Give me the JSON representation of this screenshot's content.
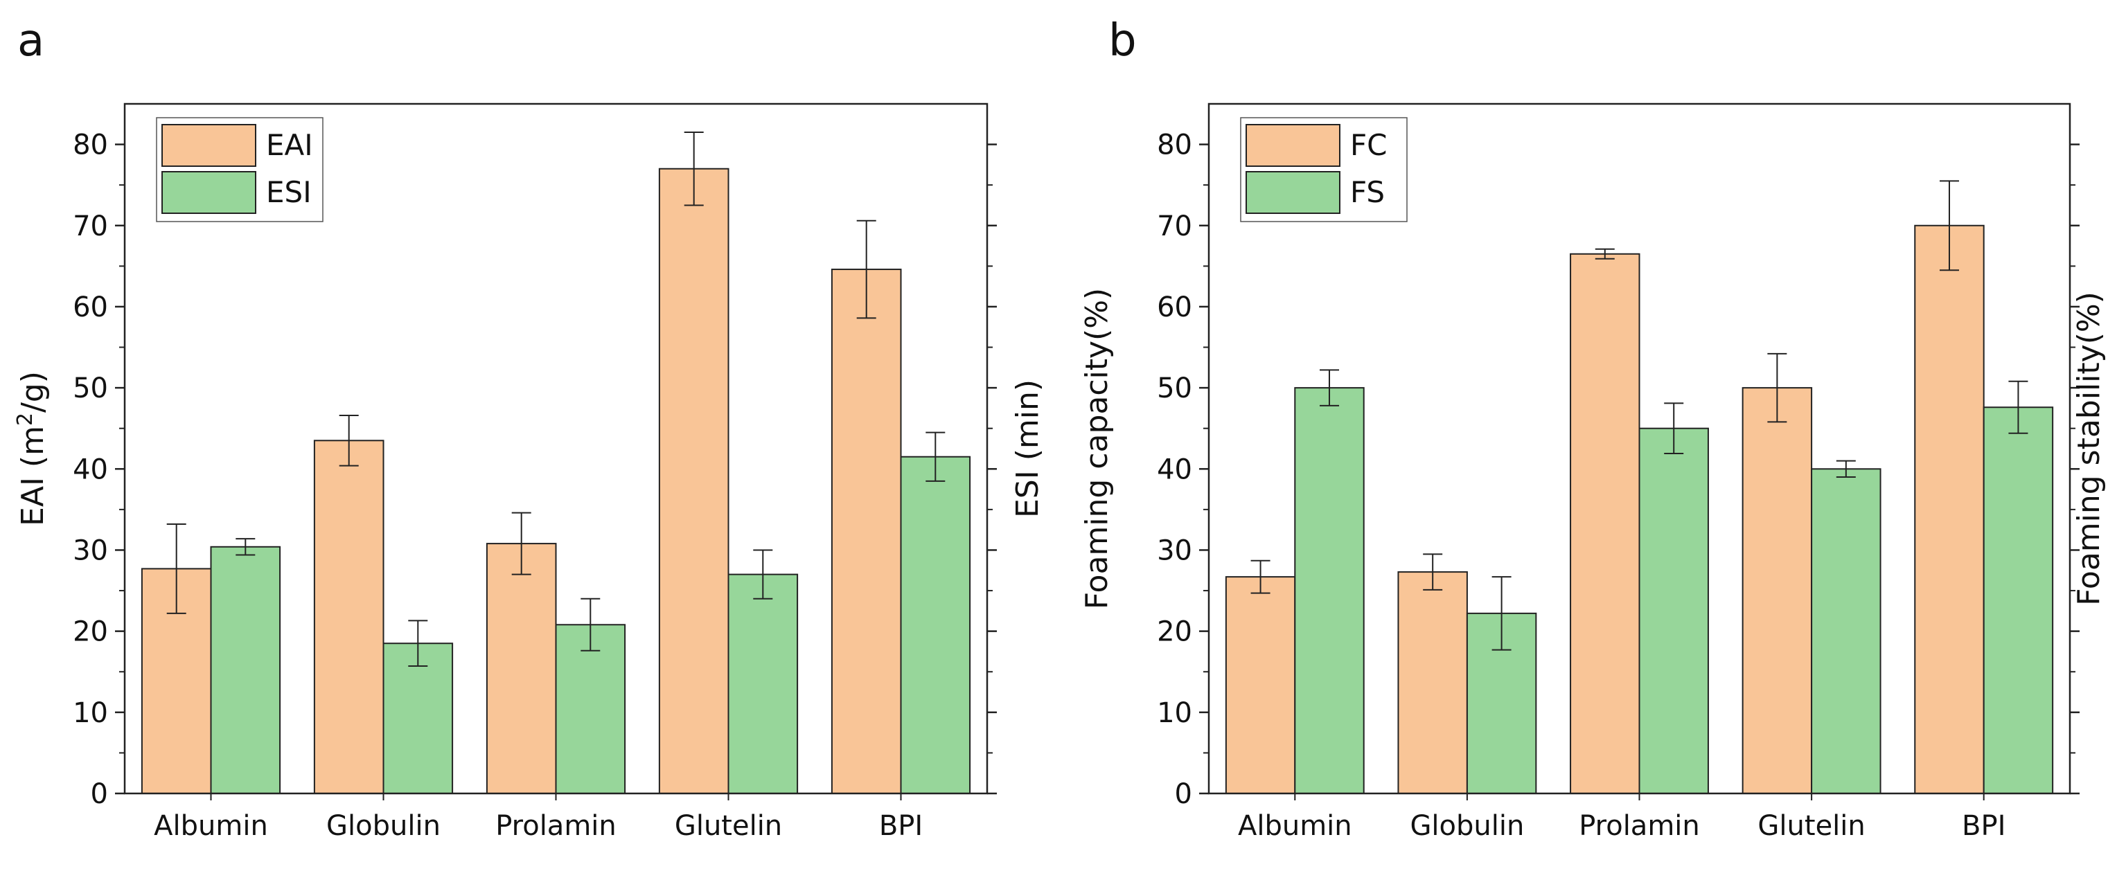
{
  "colors": {
    "orange": "#f9c597",
    "green": "#97d69a",
    "stroke": "#222222"
  },
  "chart_data": [
    {
      "panel_label": "a",
      "type": "bar",
      "categories": [
        "Albumin",
        "Globulin",
        "Prolamin",
        "Glutelin",
        "BPI"
      ],
      "ylim": [
        0,
        85
      ],
      "yticks": [
        "0",
        "10",
        "20",
        "30",
        "40",
        "50",
        "60",
        "70",
        "80"
      ],
      "ylabel_left": "EAI (m",
      "ylabel_left_sup": "2",
      "ylabel_left_end": "/g)",
      "ylabel_right": "ESI (min)",
      "legend_position": "top-left",
      "series": [
        {
          "name": "EAI",
          "color": "#f9c597",
          "values": [
            27.7,
            43.5,
            30.8,
            77.0,
            64.6
          ],
          "errors": [
            5.5,
            3.1,
            3.8,
            4.5,
            6.0
          ]
        },
        {
          "name": "ESI",
          "color": "#97d69a",
          "values": [
            30.4,
            18.5,
            20.8,
            27.0,
            41.5
          ],
          "errors": [
            1.0,
            2.8,
            3.2,
            3.0,
            3.0
          ]
        }
      ]
    },
    {
      "panel_label": "b",
      "type": "bar",
      "categories": [
        "Albumin",
        "Globulin",
        "Prolamin",
        "Glutelin",
        "BPI"
      ],
      "ylim": [
        0,
        85
      ],
      "yticks": [
        "0",
        "10",
        "20",
        "30",
        "40",
        "50",
        "60",
        "70",
        "80"
      ],
      "ylabel_left": "Foaming capacity(%)",
      "ylabel_right": "Foaming stability(%)",
      "legend_position": "top-left",
      "series": [
        {
          "name": "FC",
          "color": "#f9c597",
          "values": [
            26.7,
            27.3,
            66.5,
            50.0,
            70.0
          ],
          "errors": [
            2.0,
            2.2,
            0.6,
            4.2,
            5.5
          ]
        },
        {
          "name": "FS",
          "color": "#97d69a",
          "values": [
            50.0,
            22.2,
            45.0,
            40.0,
            47.6
          ],
          "errors": [
            2.2,
            4.5,
            3.1,
            1.0,
            3.2
          ]
        }
      ]
    }
  ]
}
